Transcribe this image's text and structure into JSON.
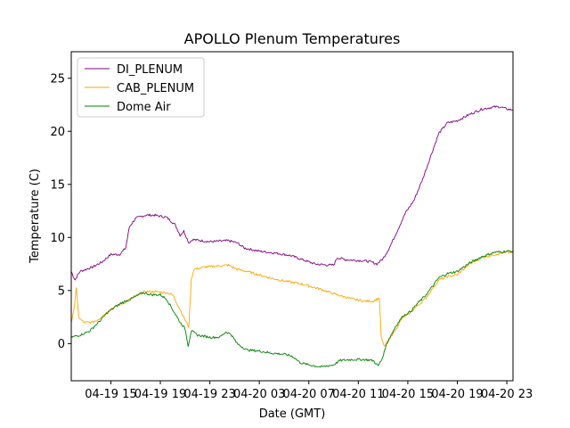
{
  "chart_data": {
    "type": "line",
    "title": "APOLLO Plenum Temperatures",
    "xlabel": "Date (GMT)",
    "ylabel": "Temperature (C)",
    "xlim": [
      11.8,
      47.5
    ],
    "ylim": [
      -3.5,
      27.5
    ],
    "x_unit": "hours since 04-19 00:00 GMT",
    "xticks": [
      {
        "value": 15,
        "label": "04-19 15"
      },
      {
        "value": 19,
        "label": "04-19 19"
      },
      {
        "value": 23,
        "label": "04-19 23"
      },
      {
        "value": 27,
        "label": "04-20 03"
      },
      {
        "value": 31,
        "label": "04-20 07"
      },
      {
        "value": 35,
        "label": "04-20 11"
      },
      {
        "value": 39,
        "label": "04-20 15"
      },
      {
        "value": 43,
        "label": "04-20 19"
      },
      {
        "value": 47,
        "label": "04-20 23"
      }
    ],
    "yticks": [
      0,
      5,
      10,
      15,
      20,
      25
    ],
    "grid": false,
    "legend": "top-left",
    "series": [
      {
        "name": "DI_PLENUM",
        "color": "#800080",
        "points": [
          [
            11.8,
            6.8
          ],
          [
            12.1,
            6.0
          ],
          [
            12.5,
            6.8
          ],
          [
            13.5,
            7.2
          ],
          [
            14.3,
            7.7
          ],
          [
            15.0,
            8.4
          ],
          [
            15.7,
            8.4
          ],
          [
            16.2,
            9.0
          ],
          [
            16.5,
            11.0
          ],
          [
            17.0,
            11.8
          ],
          [
            17.8,
            12.1
          ],
          [
            18.5,
            12.1
          ],
          [
            19.5,
            11.9
          ],
          [
            20.2,
            11.2
          ],
          [
            20.6,
            10.2
          ],
          [
            20.9,
            10.6
          ],
          [
            21.3,
            9.5
          ],
          [
            21.6,
            9.8
          ],
          [
            23.0,
            9.6
          ],
          [
            24.5,
            9.7
          ],
          [
            25.2,
            9.5
          ],
          [
            25.8,
            9.0
          ],
          [
            27.0,
            8.7
          ],
          [
            28.5,
            8.5
          ],
          [
            29.5,
            8.3
          ],
          [
            30.5,
            7.9
          ],
          [
            31.5,
            7.5
          ],
          [
            32.5,
            7.4
          ],
          [
            33.0,
            7.4
          ],
          [
            33.3,
            8.1
          ],
          [
            34.0,
            7.9
          ],
          [
            35.5,
            7.8
          ],
          [
            36.0,
            7.7
          ],
          [
            36.5,
            7.5
          ],
          [
            37.0,
            8.0
          ],
          [
            37.5,
            9.0
          ],
          [
            38.3,
            11.0
          ],
          [
            38.8,
            12.3
          ],
          [
            39.5,
            13.5
          ],
          [
            40.2,
            15.5
          ],
          [
            40.8,
            17.5
          ],
          [
            41.5,
            19.8
          ],
          [
            42.2,
            20.8
          ],
          [
            43.0,
            21.0
          ],
          [
            44.0,
            21.6
          ],
          [
            45.0,
            22.1
          ],
          [
            46.0,
            22.3
          ],
          [
            46.5,
            22.3
          ],
          [
            47.0,
            22.1
          ],
          [
            47.5,
            22.0
          ]
        ]
      },
      {
        "name": "CAB_PLENUM",
        "color": "#FFA500",
        "points": [
          [
            11.8,
            2.0
          ],
          [
            12.0,
            3.0
          ],
          [
            12.2,
            5.3
          ],
          [
            12.4,
            2.5
          ],
          [
            12.8,
            2.0
          ],
          [
            13.5,
            2.0
          ],
          [
            14.0,
            2.3
          ],
          [
            14.5,
            2.8
          ],
          [
            15.2,
            3.4
          ],
          [
            16.0,
            3.8
          ],
          [
            17.0,
            4.5
          ],
          [
            17.8,
            4.9
          ],
          [
            18.5,
            4.9
          ],
          [
            19.5,
            4.8
          ],
          [
            20.0,
            4.6
          ],
          [
            20.6,
            3.2
          ],
          [
            21.1,
            2.0
          ],
          [
            21.3,
            1.6
          ],
          [
            21.5,
            6.0
          ],
          [
            21.7,
            7.0
          ],
          [
            22.5,
            7.2
          ],
          [
            23.5,
            7.3
          ],
          [
            24.5,
            7.4
          ],
          [
            25.2,
            7.0
          ],
          [
            26.0,
            6.8
          ],
          [
            27.5,
            6.3
          ],
          [
            29.0,
            5.9
          ],
          [
            30.5,
            5.6
          ],
          [
            32.0,
            5.1
          ],
          [
            33.0,
            4.7
          ],
          [
            34.5,
            4.2
          ],
          [
            35.5,
            4.0
          ],
          [
            36.2,
            4.0
          ],
          [
            36.7,
            4.3
          ],
          [
            36.85,
            0.6
          ],
          [
            37.1,
            -0.3
          ],
          [
            37.4,
            0.3
          ],
          [
            38.0,
            1.3
          ],
          [
            38.6,
            2.5
          ],
          [
            39.2,
            2.9
          ],
          [
            39.8,
            3.6
          ],
          [
            40.4,
            4.2
          ],
          [
            41.0,
            5.2
          ],
          [
            41.5,
            6.0
          ],
          [
            42.2,
            6.3
          ],
          [
            43.0,
            6.5
          ],
          [
            44.0,
            7.5
          ],
          [
            45.0,
            8.1
          ],
          [
            46.0,
            8.4
          ],
          [
            47.0,
            8.6
          ],
          [
            47.5,
            8.6
          ]
        ]
      },
      {
        "name": "Dome Air",
        "color": "#008000",
        "points": [
          [
            11.8,
            0.6
          ],
          [
            12.5,
            0.8
          ],
          [
            13.3,
            1.2
          ],
          [
            14.0,
            2.0
          ],
          [
            14.8,
            3.0
          ],
          [
            15.8,
            3.8
          ],
          [
            16.8,
            4.3
          ],
          [
            17.6,
            4.8
          ],
          [
            18.3,
            4.6
          ],
          [
            19.0,
            4.6
          ],
          [
            19.5,
            4.2
          ],
          [
            20.0,
            3.2
          ],
          [
            20.6,
            2.0
          ],
          [
            21.0,
            1.4
          ],
          [
            21.25,
            -0.2
          ],
          [
            21.5,
            1.2
          ],
          [
            22.0,
            0.8
          ],
          [
            23.0,
            0.6
          ],
          [
            23.8,
            0.6
          ],
          [
            24.3,
            1.1
          ],
          [
            24.7,
            0.9
          ],
          [
            25.2,
            0.0
          ],
          [
            26.0,
            -0.6
          ],
          [
            27.0,
            -0.7
          ],
          [
            28.0,
            -0.9
          ],
          [
            29.0,
            -1.0
          ],
          [
            29.7,
            -1.2
          ],
          [
            30.3,
            -1.8
          ],
          [
            31.0,
            -2.0
          ],
          [
            32.0,
            -2.2
          ],
          [
            33.0,
            -2.0
          ],
          [
            33.5,
            -1.6
          ],
          [
            34.5,
            -1.5
          ],
          [
            35.5,
            -1.5
          ],
          [
            36.2,
            -1.6
          ],
          [
            36.6,
            -2.1
          ],
          [
            36.9,
            -1.5
          ],
          [
            37.3,
            0.0
          ],
          [
            38.0,
            1.6
          ],
          [
            38.6,
            2.6
          ],
          [
            39.2,
            3.0
          ],
          [
            39.8,
            3.8
          ],
          [
            40.4,
            4.5
          ],
          [
            41.0,
            5.4
          ],
          [
            41.5,
            6.2
          ],
          [
            42.2,
            6.6
          ],
          [
            43.0,
            6.8
          ],
          [
            44.0,
            7.6
          ],
          [
            45.0,
            8.2
          ],
          [
            46.0,
            8.6
          ],
          [
            47.0,
            8.7
          ],
          [
            47.5,
            8.7
          ]
        ]
      }
    ]
  }
}
